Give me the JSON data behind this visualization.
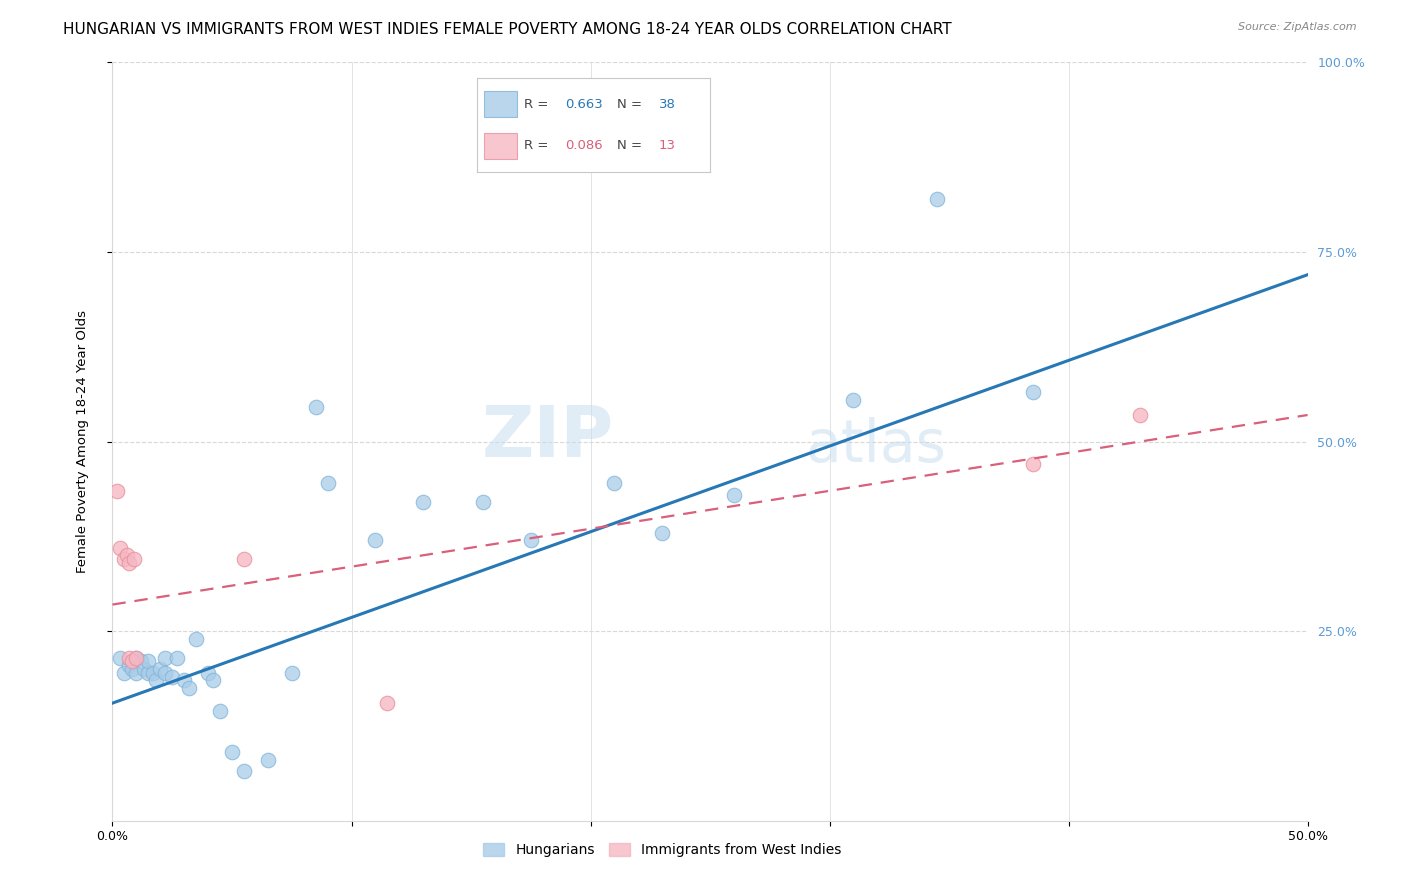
{
  "title": "HUNGARIAN VS IMMIGRANTS FROM WEST INDIES FEMALE POVERTY AMONG 18-24 YEAR OLDS CORRELATION CHART",
  "source": "Source: ZipAtlas.com",
  "ylabel": "Female Poverty Among 18-24 Year Olds",
  "xlim": [
    0.0,
    0.5
  ],
  "ylim": [
    0.0,
    1.0
  ],
  "xtick_positions": [
    0.0,
    0.1,
    0.2,
    0.3,
    0.4,
    0.5
  ],
  "xtick_labels": [
    "0.0%",
    "",
    "",
    "",
    "",
    "50.0%"
  ],
  "ytick_positions": [
    0.25,
    0.5,
    0.75,
    1.0
  ],
  "right_ytick_labels": [
    "25.0%",
    "50.0%",
    "75.0%",
    "100.0%"
  ],
  "watermark_zip": "ZIP",
  "watermark_atlas": "atlas",
  "blue_scatter": [
    [
      0.003,
      0.215
    ],
    [
      0.005,
      0.195
    ],
    [
      0.007,
      0.205
    ],
    [
      0.008,
      0.2
    ],
    [
      0.01,
      0.215
    ],
    [
      0.01,
      0.195
    ],
    [
      0.012,
      0.21
    ],
    [
      0.013,
      0.2
    ],
    [
      0.015,
      0.195
    ],
    [
      0.015,
      0.21
    ],
    [
      0.017,
      0.195
    ],
    [
      0.018,
      0.185
    ],
    [
      0.02,
      0.2
    ],
    [
      0.022,
      0.215
    ],
    [
      0.022,
      0.195
    ],
    [
      0.025,
      0.19
    ],
    [
      0.027,
      0.215
    ],
    [
      0.03,
      0.185
    ],
    [
      0.032,
      0.175
    ],
    [
      0.035,
      0.24
    ],
    [
      0.04,
      0.195
    ],
    [
      0.042,
      0.185
    ],
    [
      0.045,
      0.145
    ],
    [
      0.05,
      0.09
    ],
    [
      0.055,
      0.065
    ],
    [
      0.065,
      0.08
    ],
    [
      0.075,
      0.195
    ],
    [
      0.085,
      0.545
    ],
    [
      0.09,
      0.445
    ],
    [
      0.11,
      0.37
    ],
    [
      0.13,
      0.42
    ],
    [
      0.155,
      0.42
    ],
    [
      0.175,
      0.37
    ],
    [
      0.21,
      0.445
    ],
    [
      0.23,
      0.38
    ],
    [
      0.26,
      0.43
    ],
    [
      0.31,
      0.555
    ],
    [
      0.345,
      0.82
    ],
    [
      0.385,
      0.565
    ]
  ],
  "pink_scatter": [
    [
      0.002,
      0.435
    ],
    [
      0.003,
      0.36
    ],
    [
      0.005,
      0.345
    ],
    [
      0.006,
      0.35
    ],
    [
      0.007,
      0.34
    ],
    [
      0.007,
      0.215
    ],
    [
      0.008,
      0.21
    ],
    [
      0.009,
      0.345
    ],
    [
      0.01,
      0.215
    ],
    [
      0.055,
      0.345
    ],
    [
      0.115,
      0.155
    ],
    [
      0.385,
      0.47
    ],
    [
      0.43,
      0.535
    ]
  ],
  "blue_line_x": [
    0.0,
    0.5
  ],
  "blue_line_y": [
    0.155,
    0.72
  ],
  "pink_line_x": [
    0.0,
    0.5
  ],
  "pink_line_y": [
    0.285,
    0.535
  ],
  "scatter_size": 110,
  "blue_color": "#a8cce8",
  "pink_color": "#f5b8c4",
  "blue_edge_color": "#7fb3d9",
  "pink_edge_color": "#e8909d",
  "blue_line_color": "#2878b5",
  "pink_line_color": "#d95f7a",
  "grid_color": "#d8d8d8",
  "right_axis_color": "#5b9bd5",
  "title_fontsize": 11,
  "axis_label_fontsize": 9.5,
  "tick_fontsize": 9
}
